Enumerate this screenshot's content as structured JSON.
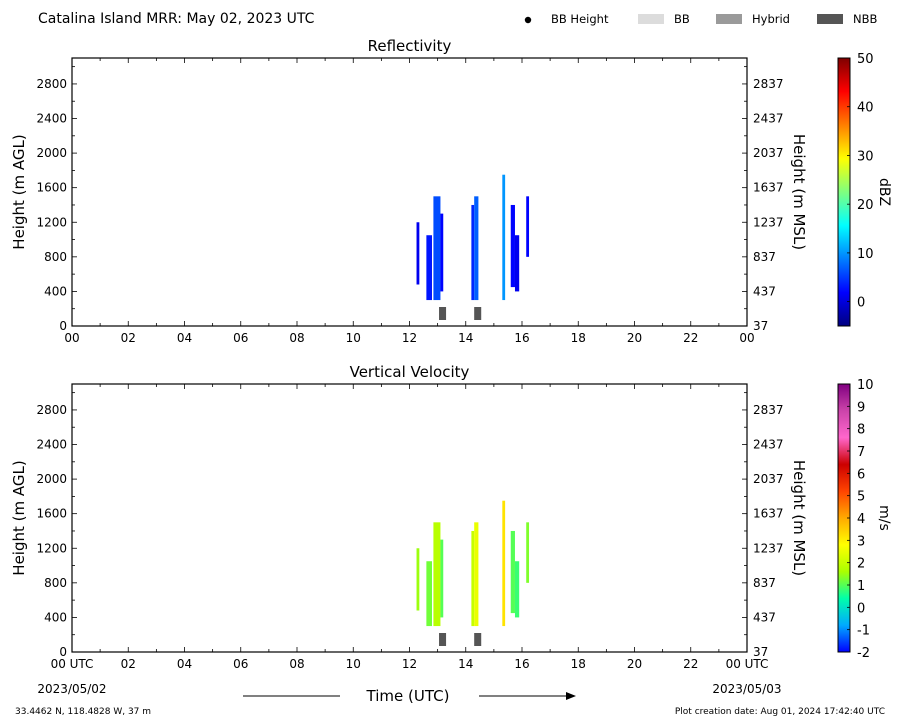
{
  "header": {
    "title": "Catalina Island MRR:  May 02, 2023 UTC",
    "legend": [
      {
        "label": "BB Height",
        "kind": "dot",
        "color": "#000000"
      },
      {
        "label": "BB",
        "kind": "box",
        "color": "#dcdcdc"
      },
      {
        "label": "Hybrid",
        "kind": "box",
        "color": "#9a9a9a"
      },
      {
        "label": "NBB",
        "kind": "box",
        "color": "#555555"
      }
    ]
  },
  "footer": {
    "location": "33.4462 N, 118.4828 W, 37 m",
    "creation": "Plot creation date: Aug 01, 2024 17:42:40 UTC",
    "xlabel": "Time (UTC)",
    "start_date": "2023/05/02",
    "end_date": "2023/05/03"
  },
  "chart_data": [
    {
      "type": "heatmap",
      "title": "Reflectivity",
      "xlabel": "",
      "ylabel": "Height (m AGL)",
      "y2label": "Height (m MSL)",
      "xlim": [
        0,
        24
      ],
      "ylim": [
        0,
        3100
      ],
      "xticks": [
        "00",
        "02",
        "04",
        "06",
        "08",
        "10",
        "12",
        "14",
        "16",
        "18",
        "20",
        "22",
        "00"
      ],
      "yticks": [
        0,
        400,
        800,
        1200,
        1600,
        2000,
        2400,
        2800
      ],
      "y2ticks": [
        37,
        437,
        837,
        1237,
        1637,
        2037,
        2437,
        2837
      ],
      "colorbar": {
        "label": "dBZ",
        "min": -5,
        "max": 50,
        "ticks": [
          0,
          10,
          20,
          30,
          40,
          50
        ],
        "stops": [
          "#00007f",
          "#0000ff",
          "#007fff",
          "#00ffff",
          "#7fff7f",
          "#ffff00",
          "#ff7f00",
          "#ff0000",
          "#7f0000"
        ]
      },
      "echoes": [
        {
          "t0": 12.25,
          "t1": 12.35,
          "hmin": 480,
          "hmax": 1200,
          "value": 1
        },
        {
          "t0": 12.6,
          "t1": 12.8,
          "hmin": 300,
          "hmax": 1050,
          "value": 3
        },
        {
          "t0": 12.85,
          "t1": 13.1,
          "hmin": 300,
          "hmax": 1500,
          "value": 6
        },
        {
          "t0": 13.1,
          "t1": 13.2,
          "hmin": 400,
          "hmax": 1300,
          "value": 2
        },
        {
          "t0": 14.2,
          "t1": 14.3,
          "hmin": 300,
          "hmax": 1400,
          "value": 4
        },
        {
          "t0": 14.3,
          "t1": 14.45,
          "hmin": 300,
          "hmax": 1500,
          "value": 7
        },
        {
          "t0": 15.3,
          "t1": 15.4,
          "hmin": 300,
          "hmax": 1750,
          "value": 10
        },
        {
          "t0": 15.6,
          "t1": 15.75,
          "hmin": 450,
          "hmax": 1400,
          "value": 2
        },
        {
          "t0": 15.75,
          "t1": 15.9,
          "hmin": 400,
          "hmax": 1050,
          "value": 1
        },
        {
          "t0": 16.15,
          "t1": 16.25,
          "hmin": 800,
          "hmax": 1500,
          "value": 2
        }
      ],
      "bb_markers": [
        {
          "t0": 13.05,
          "t1": 13.3,
          "type": "NBB"
        },
        {
          "t0": 14.3,
          "t1": 14.55,
          "type": "NBB"
        }
      ]
    },
    {
      "type": "heatmap",
      "title": "Vertical Velocity",
      "xlabel": "Time (UTC)",
      "ylabel": "Height (m AGL)",
      "y2label": "Height (m MSL)",
      "xlim": [
        0,
        24
      ],
      "ylim": [
        0,
        3100
      ],
      "xticks": [
        "00 UTC",
        "02",
        "04",
        "06",
        "08",
        "10",
        "12",
        "14",
        "16",
        "18",
        "20",
        "22",
        "00 UTC"
      ],
      "yticks": [
        0,
        400,
        800,
        1200,
        1600,
        2000,
        2400,
        2800
      ],
      "y2ticks": [
        37,
        437,
        837,
        1237,
        1637,
        2037,
        2437,
        2837
      ],
      "colorbar": {
        "label": "m/s",
        "min": -2,
        "max": 10,
        "ticks": [
          -2,
          -1,
          0,
          1,
          2,
          3,
          4,
          5,
          6,
          7,
          8,
          9,
          10
        ],
        "stops": [
          "#0000ff",
          "#00aaff",
          "#00ffaa",
          "#aaff00",
          "#ffff00",
          "#ffaa00",
          "#ff4400",
          "#cc0000",
          "#ff66cc",
          "#cc44aa",
          "#800080"
        ]
      },
      "echoes": [
        {
          "t0": 12.25,
          "t1": 12.35,
          "hmin": 480,
          "hmax": 1200,
          "value": 1.5
        },
        {
          "t0": 12.6,
          "t1": 12.8,
          "hmin": 300,
          "hmax": 1050,
          "value": 1.2
        },
        {
          "t0": 12.85,
          "t1": 13.1,
          "hmin": 300,
          "hmax": 1500,
          "value": 1.8
        },
        {
          "t0": 13.1,
          "t1": 13.2,
          "hmin": 400,
          "hmax": 1300,
          "value": 1.0
        },
        {
          "t0": 14.2,
          "t1": 14.3,
          "hmin": 300,
          "hmax": 1400,
          "value": 2.0
        },
        {
          "t0": 14.3,
          "t1": 14.45,
          "hmin": 300,
          "hmax": 1500,
          "value": 2.5
        },
        {
          "t0": 15.3,
          "t1": 15.4,
          "hmin": 300,
          "hmax": 1750,
          "value": 3.2
        },
        {
          "t0": 15.6,
          "t1": 15.75,
          "hmin": 450,
          "hmax": 1400,
          "value": 1.0
        },
        {
          "t0": 15.75,
          "t1": 15.9,
          "hmin": 400,
          "hmax": 1050,
          "value": 0.8
        },
        {
          "t0": 16.15,
          "t1": 16.25,
          "hmin": 800,
          "hmax": 1500,
          "value": 1.3
        }
      ],
      "bb_markers": [
        {
          "t0": 13.05,
          "t1": 13.3,
          "type": "NBB"
        },
        {
          "t0": 14.3,
          "t1": 14.55,
          "type": "NBB"
        }
      ]
    }
  ]
}
